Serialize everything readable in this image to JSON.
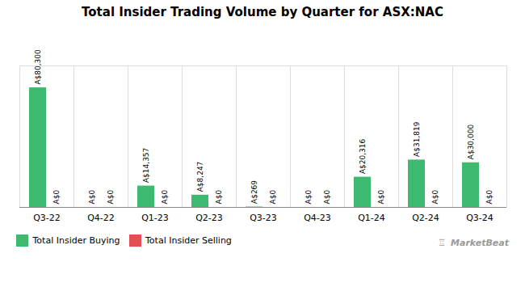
{
  "chart_data": {
    "type": "bar",
    "title": "Total Insider Trading Volume by Quarter for ASX:NAC",
    "categories": [
      "Q3-22",
      "Q4-22",
      "Q1-23",
      "Q2-23",
      "Q3-23",
      "Q4-23",
      "Q1-24",
      "Q2-24",
      "Q3-24"
    ],
    "series": [
      {
        "name": "Total Insider Buying",
        "color": "#3dba6f",
        "values": [
          80300,
          0,
          14357,
          8247,
          269,
          0,
          20316,
          31819,
          30000
        ],
        "value_labels": [
          "A$80,300",
          "A$0",
          "A$14,357",
          "A$8,247",
          "A$269",
          "A$0",
          "A$20,316",
          "A$31,819",
          "A$30,000"
        ]
      },
      {
        "name": "Total Insider Selling",
        "color": "#e05252",
        "values": [
          0,
          0,
          0,
          0,
          0,
          0,
          0,
          0,
          0
        ],
        "value_labels": [
          "A$0",
          "A$0",
          "A$0",
          "A$0",
          "A$0",
          "A$0",
          "A$0",
          "A$0",
          "A$0"
        ]
      }
    ],
    "ylim": [
      0,
      95000
    ],
    "tick_labels": "x",
    "data_labels": true,
    "legend": "lower left",
    "annotations": [
      "MarketBeat",
      "♖"
    ]
  }
}
